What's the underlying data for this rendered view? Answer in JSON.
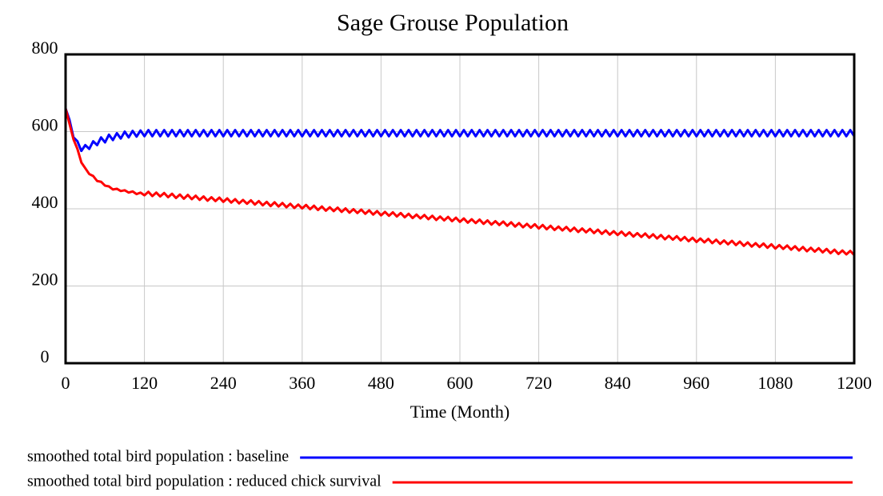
{
  "chart_data": {
    "type": "line",
    "title": "Sage Grouse Population",
    "x_label": "Time (Month)",
    "xlim": [
      0,
      1200
    ],
    "xticks": [
      0,
      120,
      240,
      360,
      480,
      600,
      720,
      840,
      960,
      1080,
      1200
    ],
    "ylim": [
      0,
      800
    ],
    "yticks": [
      0,
      200,
      400,
      600,
      800
    ],
    "grid": true,
    "legend": "bottom",
    "x": [
      0,
      6,
      12,
      18,
      24,
      30,
      36,
      42,
      48,
      54,
      60,
      66,
      72,
      78,
      84,
      90,
      96,
      102,
      108,
      114,
      120,
      126,
      132,
      138,
      144,
      150,
      156,
      162,
      168,
      174,
      180,
      186,
      192,
      198,
      204,
      210,
      216,
      222,
      228,
      234,
      240,
      246,
      252,
      258,
      264,
      270,
      276,
      282,
      288,
      294,
      300,
      306,
      312,
      318,
      324,
      330,
      336,
      342,
      348,
      354,
      360,
      366,
      372,
      378,
      384,
      390,
      396,
      402,
      408,
      414,
      420,
      426,
      432,
      438,
      444,
      450,
      456,
      462,
      468,
      474,
      480,
      486,
      492,
      498,
      504,
      510,
      516,
      522,
      528,
      534,
      540,
      546,
      552,
      558,
      564,
      570,
      576,
      582,
      588,
      594,
      600,
      606,
      612,
      618,
      624,
      630,
      636,
      642,
      648,
      654,
      660,
      666,
      672,
      678,
      684,
      690,
      696,
      702,
      708,
      714,
      720,
      726,
      732,
      738,
      744,
      750,
      756,
      762,
      768,
      774,
      780,
      786,
      792,
      798,
      804,
      810,
      816,
      822,
      828,
      834,
      840,
      846,
      852,
      858,
      864,
      870,
      876,
      882,
      888,
      894,
      900,
      906,
      912,
      918,
      924,
      930,
      936,
      942,
      948,
      954,
      960,
      966,
      972,
      978,
      984,
      990,
      996,
      1002,
      1008,
      1014,
      1020,
      1026,
      1032,
      1038,
      1044,
      1050,
      1056,
      1062,
      1068,
      1074,
      1080,
      1086,
      1092,
      1098,
      1104,
      1110,
      1116,
      1122,
      1128,
      1134,
      1140,
      1146,
      1152,
      1158,
      1164,
      1170,
      1176,
      1182,
      1188,
      1194,
      1200
    ],
    "series": [
      {
        "name": "smoothed total bird population : baseline",
        "color": "#0000ff",
        "values": [
          660,
          630,
          585,
          575,
          550,
          565,
          555,
          575,
          565,
          585,
          572,
          592,
          578,
          596,
          582,
          600,
          585,
          602,
          587,
          603,
          588,
          604,
          588,
          604,
          588,
          604,
          588,
          604,
          588,
          604,
          588,
          604,
          588,
          604,
          588,
          604,
          588,
          604,
          588,
          604,
          588,
          604,
          588,
          604,
          588,
          604,
          588,
          604,
          588,
          604,
          588,
          604,
          588,
          604,
          588,
          604,
          588,
          604,
          588,
          604,
          588,
          604,
          588,
          604,
          588,
          604,
          588,
          604,
          588,
          604,
          588,
          604,
          588,
          604,
          588,
          604,
          588,
          604,
          588,
          604,
          588,
          604,
          588,
          604,
          588,
          604,
          588,
          604,
          588,
          604,
          588,
          604,
          588,
          604,
          588,
          604,
          588,
          604,
          588,
          604,
          588,
          604,
          588,
          604,
          588,
          604,
          588,
          604,
          588,
          604,
          588,
          604,
          588,
          604,
          588,
          604,
          588,
          604,
          588,
          604,
          588,
          604,
          588,
          604,
          588,
          604,
          588,
          604,
          588,
          604,
          588,
          604,
          588,
          604,
          588,
          604,
          588,
          604,
          588,
          604,
          588,
          604,
          588,
          604,
          588,
          604,
          588,
          604,
          588,
          604,
          588,
          604,
          588,
          604,
          588,
          604,
          588,
          604,
          588,
          604,
          588,
          604,
          588,
          604,
          588,
          604,
          588,
          604,
          588,
          604,
          588,
          604,
          588,
          604,
          588,
          604,
          588,
          604,
          588,
          604,
          588,
          604,
          588,
          604,
          588,
          604,
          588,
          604,
          588,
          604,
          588,
          604,
          588,
          604,
          588,
          604,
          588,
          604,
          588,
          604,
          588
        ]
      },
      {
        "name": "smoothed total bird population : reduced chick survival",
        "color": "#ff0000",
        "values": [
          660,
          620,
          580,
          555,
          520,
          505,
          490,
          485,
          472,
          470,
          460,
          458,
          450,
          452,
          446,
          448,
          442,
          445,
          438,
          442,
          435,
          444,
          433,
          442,
          432,
          441,
          430,
          439,
          428,
          437,
          426,
          436,
          425,
          434,
          423,
          432,
          421,
          430,
          420,
          429,
          418,
          427,
          416,
          425,
          414,
          423,
          413,
          422,
          411,
          420,
          409,
          418,
          407,
          417,
          406,
          415,
          404,
          413,
          402,
          411,
          401,
          410,
          399,
          408,
          397,
          406,
          395,
          404,
          394,
          403,
          392,
          401,
          390,
          399,
          389,
          398,
          387,
          396,
          385,
          394,
          383,
          392,
          382,
          391,
          380,
          389,
          378,
          387,
          376,
          385,
          375,
          384,
          373,
          382,
          371,
          380,
          370,
          379,
          368,
          377,
          366,
          375,
          364,
          373,
          363,
          372,
          361,
          370,
          359,
          368,
          358,
          367,
          356,
          365,
          354,
          363,
          352,
          361,
          351,
          360,
          349,
          358,
          347,
          356,
          345,
          354,
          344,
          353,
          342,
          351,
          340,
          349,
          339,
          348,
          337,
          346,
          335,
          344,
          333,
          342,
          332,
          341,
          330,
          339,
          328,
          337,
          327,
          336,
          325,
          334,
          323,
          332,
          321,
          330,
          320,
          329,
          318,
          327,
          316,
          325,
          314,
          323,
          313,
          322,
          311,
          320,
          309,
          318,
          308,
          317,
          306,
          315,
          304,
          313,
          302,
          311,
          301,
          310,
          299,
          308,
          297,
          306,
          296,
          305,
          294,
          303,
          292,
          301,
          290,
          299,
          289,
          298,
          287,
          296,
          285,
          294,
          283,
          292,
          282,
          291,
          280
        ]
      }
    ]
  }
}
